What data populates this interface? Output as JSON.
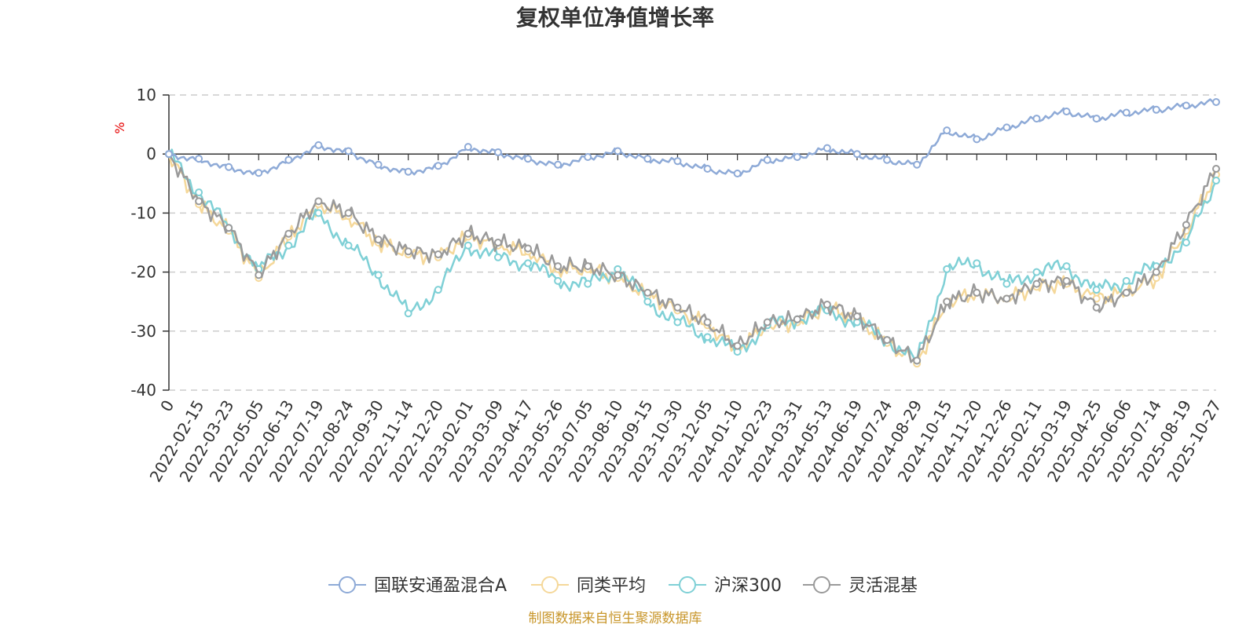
{
  "chart_data": {
    "type": "line",
    "title": "复权单位净值增长率",
    "ylabel": "%",
    "ylim": [
      -40,
      10
    ],
    "yticks": [
      10,
      0,
      -10,
      -20,
      -30,
      -40
    ],
    "categories": [
      "0",
      "2022-02-15",
      "2022-03-23",
      "2022-05-05",
      "2022-06-13",
      "2022-07-19",
      "2022-08-24",
      "2022-09-30",
      "2022-11-14",
      "2022-12-20",
      "2023-02-01",
      "2023-03-09",
      "2023-04-17",
      "2023-05-26",
      "2023-07-05",
      "2023-08-10",
      "2023-09-15",
      "2023-10-30",
      "2023-12-05",
      "2024-01-10",
      "2024-02-23",
      "2024-03-31",
      "2024-05-13",
      "2024-06-19",
      "2024-07-24",
      "2024-08-29",
      "2024-10-15",
      "2024-11-20",
      "2024-12-26",
      "2025-02-11",
      "2025-03-19",
      "2025-04-25",
      "2025-06-06",
      "2025-07-14",
      "2025-08-19",
      "2025-10-27"
    ],
    "grid": "dashed-horizontal",
    "legend_position": "bottom-center",
    "series": [
      {
        "name": "国联安通盈混合A",
        "color": "#8eaad7",
        "values": [
          0,
          -0.8,
          -2.2,
          -3.2,
          -1.0,
          1.5,
          0.5,
          -1.8,
          -3.0,
          -2.0,
          1.2,
          0.3,
          -0.8,
          -1.8,
          -0.5,
          0.5,
          -0.8,
          -1.2,
          -2.5,
          -3.3,
          -1.0,
          -0.5,
          1.0,
          0.0,
          -1.0,
          -1.8,
          4.0,
          2.5,
          4.5,
          6.0,
          7.2,
          6.0,
          7.0,
          7.5,
          8.2,
          8.8
        ]
      },
      {
        "name": "同类平均",
        "color": "#f5d89a",
        "values": [
          0,
          -8.5,
          -13.0,
          -21.0,
          -14.0,
          -8.5,
          -10.5,
          -15.0,
          -17.0,
          -17.5,
          -14.0,
          -15.5,
          -16.5,
          -19.5,
          -19.5,
          -21.0,
          -24.0,
          -26.5,
          -29.0,
          -33.0,
          -29.0,
          -28.5,
          -26.0,
          -28.0,
          -32.0,
          -35.5,
          -25.0,
          -23.5,
          -24.5,
          -22.5,
          -22.0,
          -24.5,
          -23.5,
          -21.0,
          -13.0,
          -3.5
        ]
      },
      {
        "name": "沪深300",
        "color": "#7fd0d6",
        "values": [
          0,
          -6.5,
          -12.5,
          -19.5,
          -15.5,
          -10.0,
          -15.5,
          -20.5,
          -27.0,
          -23.0,
          -15.5,
          -17.5,
          -18.5,
          -21.5,
          -22.0,
          -19.5,
          -25.0,
          -28.5,
          -31.0,
          -33.5,
          -29.0,
          -28.0,
          -26.5,
          -28.5,
          -31.5,
          -35.0,
          -19.5,
          -18.5,
          -22.0,
          -20.0,
          -19.0,
          -23.0,
          -21.5,
          -19.0,
          -15.0,
          -4.5
        ]
      },
      {
        "name": "灵活混基",
        "color": "#9a9a9a",
        "values": [
          0,
          -8.0,
          -12.5,
          -20.5,
          -13.5,
          -8.0,
          -10.0,
          -14.5,
          -16.5,
          -17.0,
          -13.5,
          -15.0,
          -16.0,
          -19.0,
          -19.0,
          -20.5,
          -23.5,
          -26.0,
          -28.5,
          -32.5,
          -28.5,
          -28.0,
          -25.5,
          -27.5,
          -31.5,
          -35.0,
          -25.0,
          -23.5,
          -24.5,
          -22.0,
          -21.5,
          -26.0,
          -23.5,
          -20.0,
          -12.0,
          -2.5
        ]
      }
    ]
  },
  "legend": {
    "items": [
      "国联安通盈混合A",
      "同类平均",
      "沪深300",
      "灵活混基"
    ]
  },
  "source": "制图数据来自恒生聚源数据库"
}
